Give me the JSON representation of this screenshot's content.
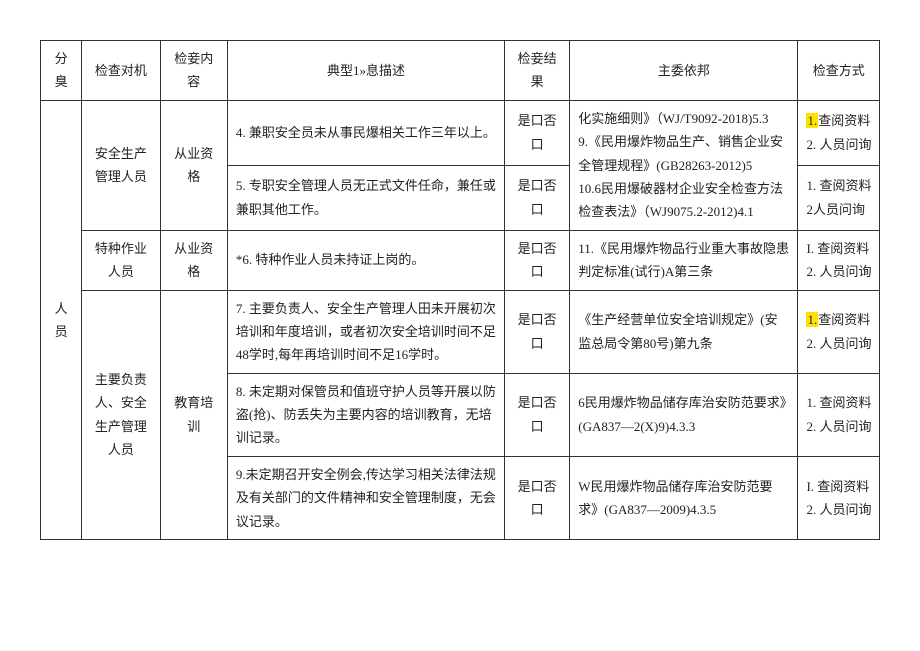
{
  "headers": {
    "cat": "分臭",
    "target": "检查对机",
    "content": "检妾内容",
    "desc": "典型1»息描述",
    "result": "检妾结果",
    "basis": "主委依邦",
    "method": "检查方式"
  },
  "cat_label": "人员",
  "groups": {
    "g1_target": "安全生产管理人员",
    "g1_content": "从业资格",
    "g2_target": "特种作业人员",
    "g2_content": "从业资格",
    "g3_target": "主要负责人、安全生产管理人员",
    "g3_content": "教育培训"
  },
  "rows": {
    "r1_desc": "4. 兼职安全员未从事民爆相关工作三年以上。",
    "r2_desc": "5. 专职安全管理人员无正式文件任命，兼任或兼职其他工作。",
    "r3_desc": "*6. 特种作业人员未持证上岗的。",
    "r4_desc": "7. 主要负责人、安全生产管理人田未开展初次培训和年度培训，或者初次安全培训时间不足48学时,每年再培训时间不足16学时。",
    "r5_desc": "8. 未定期对保管员和值班守护人员等开展以防盗(抢)、防丢失为主要内容的培训教育，无培训记录。",
    "r6_desc": "9.未定期召开安全例会,传达学习相关法律法规及有关部门的文件精神和安全管理制度，无会议记录。"
  },
  "result_text": "是口否口",
  "basis": {
    "b12": "化实施细则》（WJ/T9092-2018)5.3\n9.《民用爆炸物品生产、销售企业安全管理规程》(GB28263-2012)5\n10.6民用爆破器材企业安全检查方法检查表法》（WJ9075.2-2012)4.1",
    "b3": "11.《民用爆炸物品行业重大事故隐患判定标准(试行)A第三条",
    "b4": "《生产经营单位安全培训规定》(安监总局令第80号)第九条",
    "b5": "6民用爆炸物品储存库治安防范要求》(GA837—2(X)9)4.3.3",
    "b6": "W民用爆炸物品储存库治安防范要求》(GA837—2009)4.3.5"
  },
  "methods": {
    "m_hl1": "1.",
    "m1_a": "查阅资料",
    "m1_b": "2. 人员问询",
    "m2_a": "1. 查阅资料",
    "m2_b": "2人员问询",
    "m3_a": "I. 查阅资料",
    "m3_b": "2. 人员问询",
    "m4_a": "查阅资料",
    "m4_b": "2. 人员问询",
    "m5_a": "1. 查阅资料",
    "m5_b": "2. 人员问询",
    "m6_a": "I. 查阅资料",
    "m6_b": "2. 人员问询"
  }
}
